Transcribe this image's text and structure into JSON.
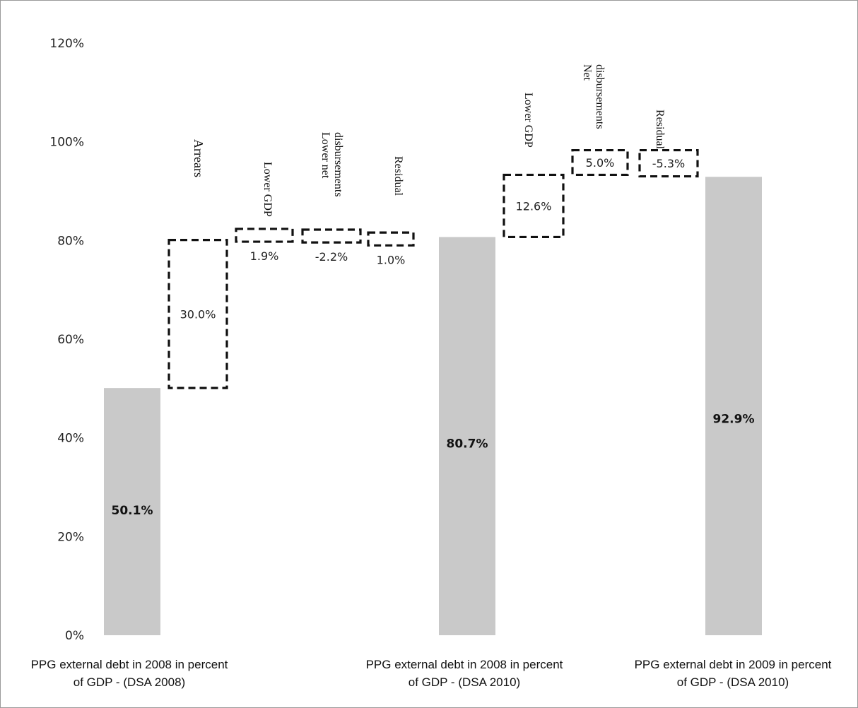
{
  "chart_data": {
    "type": "bar",
    "subtype": "waterfall",
    "ylim": [
      0,
      120
    ],
    "y_ticks": [
      "0%",
      "20%",
      "40%",
      "60%",
      "80%",
      "100%",
      "120%"
    ],
    "y_tick_values": [
      0,
      20,
      40,
      60,
      80,
      100,
      120
    ],
    "grid": false,
    "colors": {
      "total_bar": "#c9c9c9",
      "step_border": "#111111"
    },
    "totals": [
      {
        "category": "PPG external debt in 2008 in percent of GDP - (DSA 2008)",
        "value": 50.1,
        "label": "50.1%"
      },
      {
        "category": "PPG external debt in 2008 in percent of GDP - (DSA 2010)",
        "value": 80.7,
        "label": "80.7%"
      },
      {
        "category": "PPG external debt in 2009 in percent of GDP - (DSA 2010)",
        "value": 92.9,
        "label": "92.9%"
      }
    ],
    "steps": [
      {
        "name": "Arrears",
        "value": 30.0,
        "label": "30.0%"
      },
      {
        "name": "Lower GDP",
        "value": 1.9,
        "label": "1.9%"
      },
      {
        "name": "Lower net disbursements",
        "value": -2.2,
        "label": "-2.2%"
      },
      {
        "name": "Residual",
        "value": 1.0,
        "label": "1.0%"
      },
      {
        "name": "Lower GDP",
        "value": 12.6,
        "label": "12.6%"
      },
      {
        "name": "Net disbursements",
        "value": 5.0,
        "label": "5.0%"
      },
      {
        "name": "Residual",
        "value": -5.3,
        "label": "-5.3%"
      }
    ]
  }
}
